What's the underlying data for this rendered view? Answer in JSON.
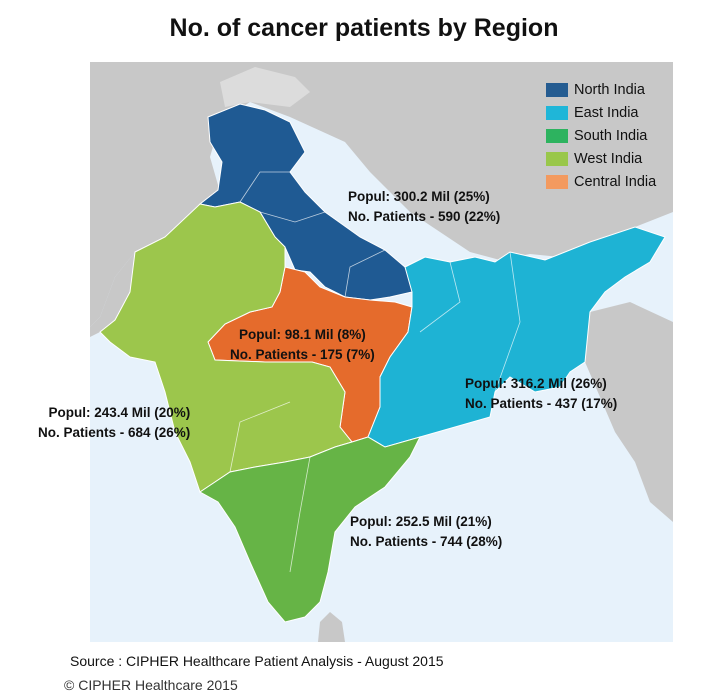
{
  "title": "No. of cancer patients by Region",
  "legend": [
    {
      "label": "North India",
      "color": "#255c91"
    },
    {
      "label": "East India",
      "color": "#1fb6d8"
    },
    {
      "label": "South India",
      "color": "#2db35f"
    },
    {
      "label": "West India",
      "color": "#99c74a"
    },
    {
      "label": "Central India",
      "color": "#f39a5f"
    }
  ],
  "regions": {
    "north": {
      "population": "Popul: 300.2 Mil (25%)",
      "patients": "No. Patients - 590 (22%)"
    },
    "east": {
      "population": "Popul: 316.2 Mil (26%)",
      "patients": "No. Patients - 437 (17%)"
    },
    "west": {
      "population": "Popul: 243.4 Mil (20%)",
      "patients": "No. Patients - 684 (26%)"
    },
    "south": {
      "population": "Popul: 252.5 Mil (21%)",
      "patients": "No. Patients - 744 (28%)"
    },
    "central": {
      "population": "Popul: 98.1 Mil (8%)",
      "patients": "No. Patients - 175 (7%)"
    }
  },
  "map_colors": {
    "north": "#1f5a93",
    "east": "#1eb3d4",
    "south": "#66b446",
    "west": "#9cc64c",
    "central": "#e56b2c",
    "land": "#c8c8c8",
    "sea": "#e7f2fb"
  },
  "source": "Source : CIPHER Healthcare Patient Analysis -  August 2015",
  "copyright": "© CIPHER Healthcare 2015"
}
